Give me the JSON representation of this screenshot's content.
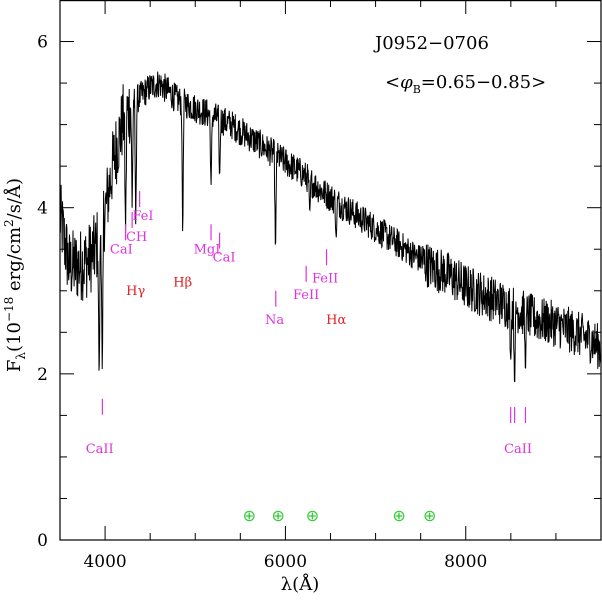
{
  "chart_data": {
    "type": "line",
    "title": "",
    "annotations": {
      "object": "J0952−0706",
      "phase_prefix": "<",
      "phase_phi": "φ",
      "phase_sub": "B",
      "phase_range": "=0.65−0.85>"
    },
    "xlabel": "λ(Å)",
    "ylabel": {
      "text_start": "F",
      "sub": "λ",
      "paren_open": "(10",
      "exp": "−18",
      "units": " erg/cm",
      "units_exp": "2",
      "units_end": "/s/Å)"
    },
    "xlim": [
      3500,
      9500
    ],
    "ylim": [
      0,
      6.5
    ],
    "x_ticks": [
      4000,
      6000,
      8000
    ],
    "x_tick_labels": [
      "4000",
      "6000",
      "8000"
    ],
    "y_ticks": [
      0,
      2,
      4,
      6
    ],
    "y_tick_labels": [
      "0",
      "2",
      "4",
      "6"
    ],
    "series": [
      {
        "color": "#000000",
        "continuum": {
          "x": [
            3500,
            3600,
            3700,
            3800,
            3900,
            4000,
            4100,
            4200,
            4300,
            4400,
            4500,
            4600,
            4700,
            4800,
            5000,
            5200,
            5400,
            5600,
            5800,
            6000,
            6200,
            6400,
            6600,
            6800,
            7000,
            7200,
            7400,
            7600,
            7800,
            8000,
            8200,
            8400,
            8600,
            8800,
            9000,
            9200,
            9400,
            9500
          ],
          "y": [
            3.9,
            3.3,
            3.3,
            3.35,
            3.5,
            3.95,
            4.6,
            5.05,
            5.25,
            5.35,
            5.45,
            5.5,
            5.4,
            5.3,
            5.2,
            5.1,
            5.0,
            4.85,
            4.7,
            4.55,
            4.4,
            4.2,
            4.05,
            3.9,
            3.75,
            3.6,
            3.45,
            3.3,
            3.2,
            3.05,
            2.95,
            2.85,
            2.75,
            2.65,
            2.6,
            2.5,
            2.4,
            2.3
          ]
        },
        "absorption_dips": [
          {
            "x": 3934,
            "y": 1.8
          },
          {
            "x": 3969,
            "y": 1.9
          },
          {
            "x": 4227,
            "y": 3.6
          },
          {
            "x": 4300,
            "y": 4.0
          },
          {
            "x": 4340,
            "y": 3.8
          },
          {
            "x": 4861,
            "y": 3.6
          },
          {
            "x": 5175,
            "y": 4.2
          },
          {
            "x": 5270,
            "y": 4.3
          },
          {
            "x": 5890,
            "y": 3.4
          },
          {
            "x": 6270,
            "y": 3.9
          },
          {
            "x": 6563,
            "y": 3.6
          },
          {
            "x": 8498,
            "y": 2.1
          },
          {
            "x": 8542,
            "y": 1.8
          },
          {
            "x": 8662,
            "y": 2.0
          }
        ],
        "noise_amplitude_red": 0.28,
        "noise_amplitude_blue": 0.45,
        "noise_amplitude_mid": 0.18
      }
    ],
    "line_ids": [
      {
        "label": "CaII",
        "color": "#e033e0",
        "ticks_x": [
          3970
        ],
        "tick_y": 1.7,
        "text_x": 3940,
        "text_y": 1.05
      },
      {
        "label": "CaI",
        "color": "#e033e0",
        "ticks_x": [
          4227
        ],
        "tick_y": 3.8,
        "text_x": 4180,
        "text_y": 3.45
      },
      {
        "label": "CH",
        "color": "#e033e0",
        "ticks_x": [
          4300
        ],
        "tick_y": 3.95,
        "text_x": 4350,
        "text_y": 3.6
      },
      {
        "label": "FeI",
        "color": "#e033e0",
        "ticks_x": [
          4383
        ],
        "tick_y": 4.2,
        "text_x": 4420,
        "text_y": 3.85
      },
      {
        "label": "MgI",
        "color": "#e033e0",
        "ticks_x": [
          5175
        ],
        "tick_y": 3.8,
        "text_x": 5130,
        "text_y": 3.45
      },
      {
        "label": "CaI",
        "color": "#e033e0",
        "ticks_x": [
          5270
        ],
        "tick_y": 3.7,
        "text_x": 5320,
        "text_y": 3.35
      },
      {
        "label": "Na",
        "color": "#e033e0",
        "ticks_x": [
          5893
        ],
        "tick_y": 3.0,
        "text_x": 5880,
        "text_y": 2.6
      },
      {
        "label": "FeII",
        "color": "#e033e0",
        "ticks_x": [
          6230
        ],
        "tick_y": 3.3,
        "text_x": 6230,
        "text_y": 2.9
      },
      {
        "label": "FeII",
        "color": "#e033e0",
        "ticks_x": [
          6456
        ],
        "tick_y": 3.5,
        "text_x": 6440,
        "text_y": 3.1
      },
      {
        "label": "CaII",
        "color": "#e033e0",
        "ticks_x": [
          8498,
          8542,
          8662
        ],
        "tick_y": 1.6,
        "text_x": 8580,
        "text_y": 1.05
      }
    ],
    "balmer_labels": [
      {
        "label": "Hγ",
        "color": "#e02020",
        "text_x": 4340,
        "text_y": 2.95
      },
      {
        "label": "Hβ",
        "color": "#e02020",
        "text_x": 4861,
        "text_y": 3.05
      },
      {
        "label": "Hα",
        "color": "#e02020",
        "text_x": 6563,
        "text_y": 2.6
      }
    ],
    "telluric_markers": {
      "symbol": "⊕",
      "color": "#33cc33",
      "x": [
        5600,
        5920,
        6300,
        7260,
        7600
      ],
      "y": 0.3
    }
  }
}
